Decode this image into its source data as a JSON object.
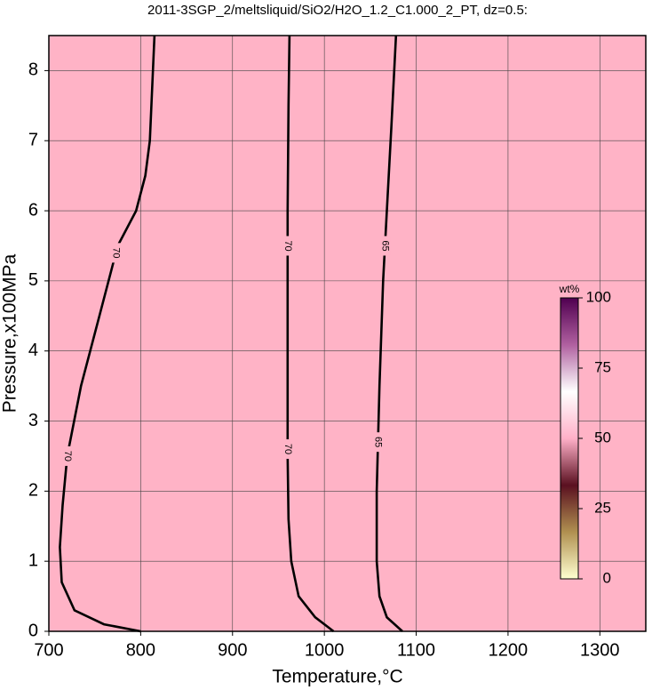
{
  "chart_data": {
    "type": "contour",
    "title": "2011-3SGP_2/meltsliquid/SiO2/H2O_1.2_C1.000_2_PT, dz=0.5:",
    "x_label": "Temperature,°C",
    "y_label": "Pressure,x100MPa",
    "xlim": [
      700,
      1350
    ],
    "ylim": [
      0,
      8.5
    ],
    "xticks": [
      700,
      800,
      900,
      1000,
      1100,
      1200,
      1300
    ],
    "yticks": [
      0,
      1,
      2,
      3,
      4,
      5,
      6,
      7,
      8
    ],
    "grid": true,
    "background": "#ffb3c6",
    "contours": [
      {
        "level": 70,
        "color": "#000000",
        "x": [
          800,
          760,
          728,
          714,
          712,
          715,
          720,
          735,
          755,
          775,
          795,
          805,
          810,
          815
        ],
        "y": [
          0,
          0.1,
          0.3,
          0.7,
          1.2,
          1.8,
          2.5,
          3.5,
          4.5,
          5.5,
          6.0,
          6.5,
          7.0,
          8.5
        ],
        "label_y": [
          2.5,
          5.4
        ]
      },
      {
        "level": 70,
        "color": "#000000",
        "x": [
          1010,
          990,
          972,
          964,
          961,
          960,
          960,
          960,
          961,
          962
        ],
        "y": [
          0,
          0.2,
          0.5,
          1.0,
          1.6,
          2.5,
          4.0,
          6.0,
          7.5,
          8.5
        ],
        "label_y": [
          2.6,
          5.5
        ]
      },
      {
        "level": 65,
        "color": "#000000",
        "x": [
          1085,
          1068,
          1060,
          1057,
          1057,
          1060,
          1064,
          1068,
          1073,
          1078
        ],
        "y": [
          0,
          0.2,
          0.5,
          1.0,
          2.0,
          3.5,
          5.0,
          6.0,
          7.2,
          8.5
        ],
        "label_y": [
          2.7,
          5.5
        ]
      }
    ],
    "colorbar": {
      "label": "wt%",
      "lim": [
        0,
        100
      ],
      "ticks": [
        0,
        25,
        50,
        75,
        100
      ],
      "colors": [
        "#ffffd0",
        "#b09050",
        "#5a1020",
        "#ffb0c8",
        "#ffffff",
        "#b060a0",
        "#500050"
      ]
    }
  }
}
